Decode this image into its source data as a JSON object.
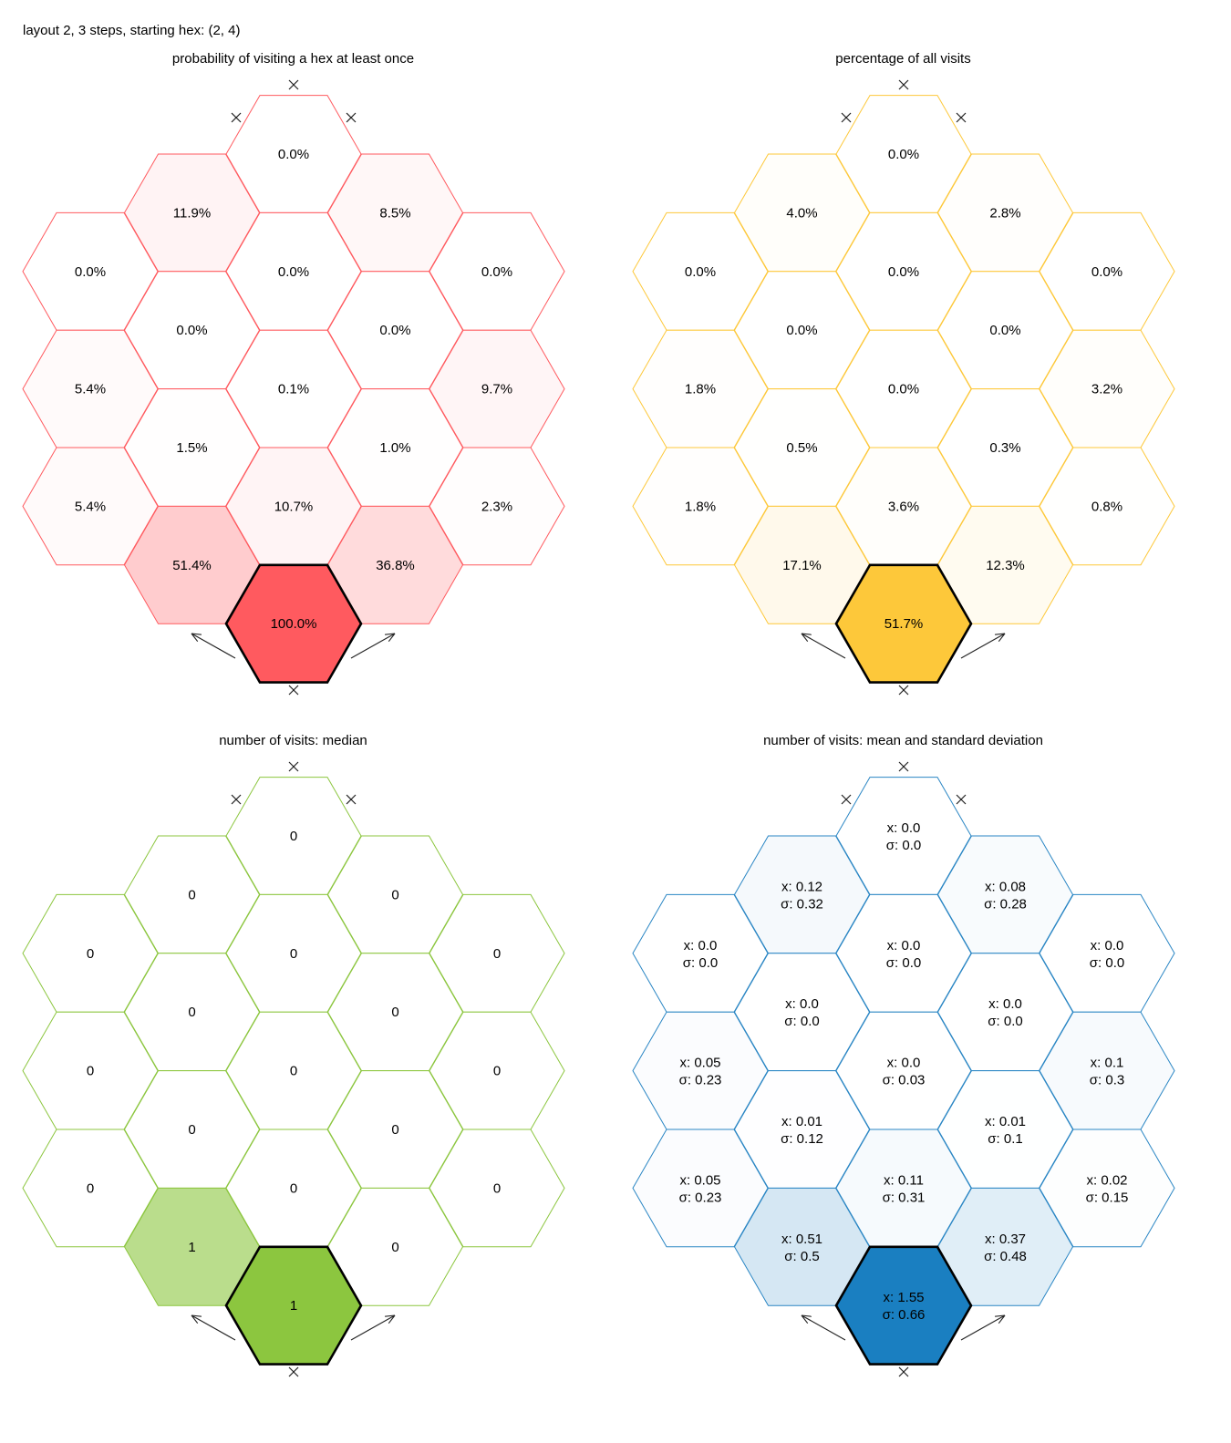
{
  "page_title": "layout 2, 3 steps, starting hex: (2, 4)",
  "panels": [
    {
      "title": "probability of visiting a hex at least once",
      "color": "#ff5a5f",
      "start_fill": "#ff5a5f",
      "hexes": [
        {
          "col": 2,
          "row": 0,
          "label": "0.0%",
          "level": 0.0
        },
        {
          "col": 1,
          "row": 1,
          "label": "11.9%",
          "level": 0.119
        },
        {
          "col": 3,
          "row": 1,
          "label": "8.5%",
          "level": 0.085
        },
        {
          "col": 0,
          "row": 2,
          "label": "0.0%",
          "level": 0.0
        },
        {
          "col": 2,
          "row": 2,
          "label": "0.0%",
          "level": 0.0
        },
        {
          "col": 4,
          "row": 2,
          "label": "0.0%",
          "level": 0.0
        },
        {
          "col": 1,
          "row": 3,
          "label": "0.0%",
          "level": 0.0
        },
        {
          "col": 3,
          "row": 3,
          "label": "0.0%",
          "level": 0.0
        },
        {
          "col": 0,
          "row": 4,
          "label": "5.4%",
          "level": 0.054
        },
        {
          "col": 2,
          "row": 4,
          "label": "0.1%",
          "level": 0.001
        },
        {
          "col": 4,
          "row": 4,
          "label": "9.7%",
          "level": 0.097
        },
        {
          "col": 1,
          "row": 5,
          "label": "1.5%",
          "level": 0.015
        },
        {
          "col": 3,
          "row": 5,
          "label": "1.0%",
          "level": 0.01
        },
        {
          "col": 0,
          "row": 6,
          "label": "5.4%",
          "level": 0.054
        },
        {
          "col": 2,
          "row": 6,
          "label": "10.7%",
          "level": 0.107
        },
        {
          "col": 4,
          "row": 6,
          "label": "2.3%",
          "level": 0.023
        },
        {
          "col": 1,
          "row": 7,
          "label": "51.4%",
          "level": 0.514
        },
        {
          "col": 3,
          "row": 7,
          "label": "36.8%",
          "level": 0.368
        },
        {
          "col": 2,
          "row": 8,
          "label": "100.0%",
          "level": 1.0,
          "start": true
        }
      ]
    },
    {
      "title": "percentage of all visits",
      "color": "#fdc83a",
      "start_fill": "#fdc83a",
      "hexes": [
        {
          "col": 2,
          "row": 0,
          "label": "0.0%",
          "level": 0.0
        },
        {
          "col": 1,
          "row": 1,
          "label": "4.0%",
          "level": 0.04
        },
        {
          "col": 3,
          "row": 1,
          "label": "2.8%",
          "level": 0.028
        },
        {
          "col": 0,
          "row": 2,
          "label": "0.0%",
          "level": 0.0
        },
        {
          "col": 2,
          "row": 2,
          "label": "0.0%",
          "level": 0.0
        },
        {
          "col": 4,
          "row": 2,
          "label": "0.0%",
          "level": 0.0
        },
        {
          "col": 1,
          "row": 3,
          "label": "0.0%",
          "level": 0.0
        },
        {
          "col": 3,
          "row": 3,
          "label": "0.0%",
          "level": 0.0
        },
        {
          "col": 0,
          "row": 4,
          "label": "1.8%",
          "level": 0.018
        },
        {
          "col": 2,
          "row": 4,
          "label": "0.0%",
          "level": 0.0
        },
        {
          "col": 4,
          "row": 4,
          "label": "3.2%",
          "level": 0.032
        },
        {
          "col": 1,
          "row": 5,
          "label": "0.5%",
          "level": 0.005
        },
        {
          "col": 3,
          "row": 5,
          "label": "0.3%",
          "level": 0.003
        },
        {
          "col": 0,
          "row": 6,
          "label": "1.8%",
          "level": 0.018
        },
        {
          "col": 2,
          "row": 6,
          "label": "3.6%",
          "level": 0.036
        },
        {
          "col": 4,
          "row": 6,
          "label": "0.8%",
          "level": 0.008
        },
        {
          "col": 1,
          "row": 7,
          "label": "17.1%",
          "level": 0.171
        },
        {
          "col": 3,
          "row": 7,
          "label": "12.3%",
          "level": 0.123
        },
        {
          "col": 2,
          "row": 8,
          "label": "51.7%",
          "level": 0.517,
          "start": true
        }
      ]
    },
    {
      "title": "number of visits: median",
      "color": "#8cc63f",
      "start_fill": "#8cc63f",
      "hexes": [
        {
          "col": 2,
          "row": 0,
          "label": "0",
          "level": 0
        },
        {
          "col": 1,
          "row": 1,
          "label": "0",
          "level": 0
        },
        {
          "col": 3,
          "row": 1,
          "label": "0",
          "level": 0
        },
        {
          "col": 0,
          "row": 2,
          "label": "0",
          "level": 0
        },
        {
          "col": 2,
          "row": 2,
          "label": "0",
          "level": 0
        },
        {
          "col": 4,
          "row": 2,
          "label": "0",
          "level": 0
        },
        {
          "col": 1,
          "row": 3,
          "label": "0",
          "level": 0
        },
        {
          "col": 3,
          "row": 3,
          "label": "0",
          "level": 0
        },
        {
          "col": 0,
          "row": 4,
          "label": "0",
          "level": 0
        },
        {
          "col": 2,
          "row": 4,
          "label": "0",
          "level": 0
        },
        {
          "col": 4,
          "row": 4,
          "label": "0",
          "level": 0
        },
        {
          "col": 1,
          "row": 5,
          "label": "0",
          "level": 0
        },
        {
          "col": 3,
          "row": 5,
          "label": "0",
          "level": 0
        },
        {
          "col": 0,
          "row": 6,
          "label": "0",
          "level": 0
        },
        {
          "col": 2,
          "row": 6,
          "label": "0",
          "level": 0
        },
        {
          "col": 4,
          "row": 6,
          "label": "0",
          "level": 0
        },
        {
          "col": 1,
          "row": 7,
          "label": "1",
          "level": 1
        },
        {
          "col": 3,
          "row": 7,
          "label": "0",
          "level": 0
        },
        {
          "col": 2,
          "row": 8,
          "label": "1",
          "level": 1,
          "start": true
        }
      ]
    },
    {
      "title": "number of visits: mean and standard deviation",
      "color": "#2a86c4",
      "start_fill": "#1a7fc1",
      "hexes": [
        {
          "col": 2,
          "row": 0,
          "label": "x: 0.0",
          "label2": "σ: 0.0",
          "level": 0.0
        },
        {
          "col": 1,
          "row": 1,
          "label": "x: 0.12",
          "label2": "σ: 0.32",
          "level": 0.08
        },
        {
          "col": 3,
          "row": 1,
          "label": "x: 0.08",
          "label2": "σ: 0.28",
          "level": 0.055
        },
        {
          "col": 0,
          "row": 2,
          "label": "x: 0.0",
          "label2": "σ: 0.0",
          "level": 0.0
        },
        {
          "col": 2,
          "row": 2,
          "label": "x: 0.0",
          "label2": "σ: 0.0",
          "level": 0.0
        },
        {
          "col": 4,
          "row": 2,
          "label": "x: 0.0",
          "label2": "σ: 0.0",
          "level": 0.0
        },
        {
          "col": 1,
          "row": 3,
          "label": "x: 0.0",
          "label2": "σ: 0.0",
          "level": 0.0
        },
        {
          "col": 3,
          "row": 3,
          "label": "x: 0.0",
          "label2": "σ: 0.0",
          "level": 0.0
        },
        {
          "col": 0,
          "row": 4,
          "label": "x: 0.05",
          "label2": "σ: 0.23",
          "level": 0.035
        },
        {
          "col": 2,
          "row": 4,
          "label": "x: 0.0",
          "label2": "σ: 0.03",
          "level": 0.0
        },
        {
          "col": 4,
          "row": 4,
          "label": "x: 0.1",
          "label2": "σ: 0.3",
          "level": 0.065
        },
        {
          "col": 1,
          "row": 5,
          "label": "x: 0.01",
          "label2": "σ: 0.12",
          "level": 0.008
        },
        {
          "col": 3,
          "row": 5,
          "label": "x: 0.01",
          "label2": "σ: 0.1",
          "level": 0.006
        },
        {
          "col": 0,
          "row": 6,
          "label": "x: 0.05",
          "label2": "σ: 0.23",
          "level": 0.035
        },
        {
          "col": 2,
          "row": 6,
          "label": "x: 0.11",
          "label2": "σ: 0.31",
          "level": 0.07
        },
        {
          "col": 4,
          "row": 6,
          "label": "x: 0.02",
          "label2": "σ: 0.15",
          "level": 0.015
        },
        {
          "col": 1,
          "row": 7,
          "label": "x: 0.51",
          "label2": "σ: 0.5",
          "level": 0.33
        },
        {
          "col": 3,
          "row": 7,
          "label": "x: 0.37",
          "label2": "σ: 0.48",
          "level": 0.24
        },
        {
          "col": 2,
          "row": 8,
          "label": "x: 1.55",
          "label2": "σ: 0.66",
          "level": 1.0,
          "start": true
        }
      ]
    }
  ]
}
